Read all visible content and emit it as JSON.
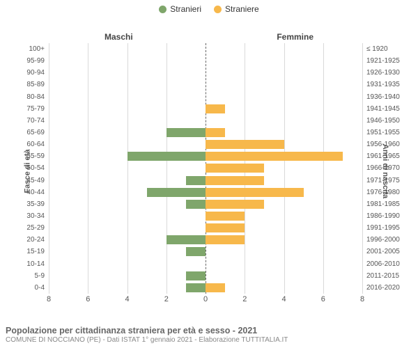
{
  "legend": {
    "male": {
      "label": "Stranieri",
      "color": "#7fa66b"
    },
    "female": {
      "label": "Straniere",
      "color": "#f7b84b"
    }
  },
  "column_headers": {
    "left": "Maschi",
    "right": "Femmine"
  },
  "yaxis_titles": {
    "left": "Fasce di età",
    "right": "Anni di nascita"
  },
  "xaxis": {
    "max": 8,
    "ticks": [
      0,
      2,
      4,
      6,
      8
    ]
  },
  "grid_color": "#d9d9d9",
  "center_line_color": "#666666",
  "background_color": "#ffffff",
  "rows": [
    {
      "age": "100+",
      "birth": "≤ 1920",
      "m": 0,
      "f": 0
    },
    {
      "age": "95-99",
      "birth": "1921-1925",
      "m": 0,
      "f": 0
    },
    {
      "age": "90-94",
      "birth": "1926-1930",
      "m": 0,
      "f": 0
    },
    {
      "age": "85-89",
      "birth": "1931-1935",
      "m": 0,
      "f": 0
    },
    {
      "age": "80-84",
      "birth": "1936-1940",
      "m": 0,
      "f": 0
    },
    {
      "age": "75-79",
      "birth": "1941-1945",
      "m": 0,
      "f": 1
    },
    {
      "age": "70-74",
      "birth": "1946-1950",
      "m": 0,
      "f": 0
    },
    {
      "age": "65-69",
      "birth": "1951-1955",
      "m": 2,
      "f": 1
    },
    {
      "age": "60-64",
      "birth": "1956-1960",
      "m": 0,
      "f": 4
    },
    {
      "age": "55-59",
      "birth": "1961-1965",
      "m": 4,
      "f": 7
    },
    {
      "age": "50-54",
      "birth": "1966-1970",
      "m": 0,
      "f": 3
    },
    {
      "age": "45-49",
      "birth": "1971-1975",
      "m": 1,
      "f": 3
    },
    {
      "age": "40-44",
      "birth": "1976-1980",
      "m": 3,
      "f": 5
    },
    {
      "age": "35-39",
      "birth": "1981-1985",
      "m": 1,
      "f": 3
    },
    {
      "age": "30-34",
      "birth": "1986-1990",
      "m": 0,
      "f": 2
    },
    {
      "age": "25-29",
      "birth": "1991-1995",
      "m": 0,
      "f": 2
    },
    {
      "age": "20-24",
      "birth": "1996-2000",
      "m": 2,
      "f": 2
    },
    {
      "age": "15-19",
      "birth": "2001-2005",
      "m": 1,
      "f": 0
    },
    {
      "age": "10-14",
      "birth": "2006-2010",
      "m": 0,
      "f": 0
    },
    {
      "age": "5-9",
      "birth": "2011-2015",
      "m": 1,
      "f": 0
    },
    {
      "age": "0-4",
      "birth": "2016-2020",
      "m": 1,
      "f": 1
    }
  ],
  "footer": {
    "title": "Popolazione per cittadinanza straniera per età e sesso - 2021",
    "subtitle": "COMUNE DI NOCCIANO (PE) - Dati ISTAT 1° gennaio 2021 - Elaborazione TUTTITALIA.IT"
  }
}
